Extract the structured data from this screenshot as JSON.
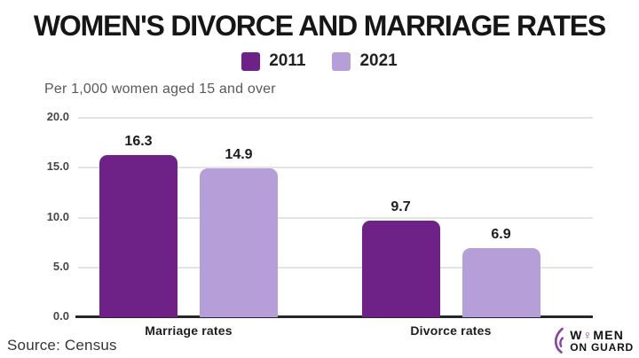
{
  "title": "WOMEN'S DIVORCE AND MARRIAGE RATES",
  "subtitle": "Per 1,000 women aged 15 and over",
  "source": "Source: Census",
  "colors": {
    "series_2011": "#6e2186",
    "series_2021": "#b69ed8",
    "gridline": "#e4e4e4",
    "axis": "#262626",
    "logo_accent": "#8b3fa8"
  },
  "legend": [
    {
      "label": "2011",
      "color": "#6e2186"
    },
    {
      "label": "2021",
      "color": "#b69ed8"
    }
  ],
  "chart_data": {
    "type": "bar",
    "title": "WOMEN'S DIVORCE AND MARRIAGE RATES",
    "subtitle": "Per 1,000 women aged 15 and over",
    "categories": [
      "Marriage rates",
      "Divorce rates"
    ],
    "series": [
      {
        "name": "2011",
        "color": "#6e2186",
        "values": [
          16.3,
          9.7
        ]
      },
      {
        "name": "2021",
        "color": "#b69ed8",
        "values": [
          14.9,
          6.9
        ]
      }
    ],
    "ylabel": "Per 1,000 women aged 15 and over",
    "ylim": [
      0,
      20
    ],
    "yticks": [
      20.0,
      15.0,
      10.0,
      5.0,
      0.0
    ],
    "grid": true,
    "legend_position": "top",
    "value_labels": true,
    "source": "Source: Census"
  },
  "logo": {
    "part_w": "W",
    "female_symbol": "♀",
    "part_men": "MEN",
    "line2": "ON GUARD"
  }
}
